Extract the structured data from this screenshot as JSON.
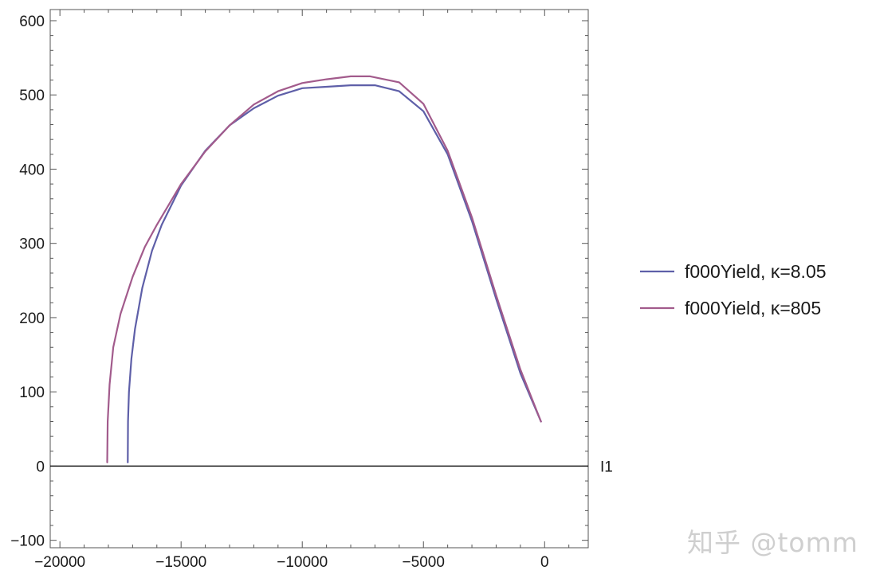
{
  "chart_data": {
    "type": "line",
    "title": "",
    "xlabel": "I1",
    "ylabel": "",
    "xlim": [
      -20400,
      1800
    ],
    "ylim": [
      -110,
      615
    ],
    "xticks": [
      -20000,
      -15000,
      -10000,
      -5000,
      0
    ],
    "xtick_labels": [
      "−20000",
      "−15000",
      "−10000",
      "−5000",
      "0"
    ],
    "yticks": [
      -100,
      0,
      100,
      200,
      300,
      400,
      500,
      600
    ],
    "ytick_labels": [
      "−100",
      "0",
      "100",
      "200",
      "300",
      "400",
      "500",
      "600"
    ],
    "grid": false,
    "legend": "right",
    "series": [
      {
        "name": "f000Yield, κ=8.05",
        "color": "#5e5fa8",
        "x": [
          -17200,
          -17190,
          -17150,
          -17050,
          -16900,
          -16600,
          -16200,
          -15800,
          -15000,
          -14000,
          -13000,
          -12000,
          -11000,
          -10000,
          -9000,
          -8000,
          -7000,
          -6000,
          -5000,
          -4000,
          -3000,
          -2000,
          -1000,
          -150
        ],
        "y": [
          5,
          60,
          100,
          145,
          185,
          240,
          290,
          325,
          378,
          425,
          459,
          482,
          499,
          509,
          511,
          513,
          513,
          505,
          478,
          420,
          330,
          225,
          125,
          60
        ]
      },
      {
        "name": "f000Yield, κ=805",
        "color": "#a25b8c",
        "x": [
          -18050,
          -18030,
          -17950,
          -17800,
          -17500,
          -17000,
          -16500,
          -16000,
          -15000,
          -14000,
          -13000,
          -12000,
          -11000,
          -10000,
          -9000,
          -8000,
          -7200,
          -6000,
          -5000,
          -4000,
          -3000,
          -2000,
          -1000,
          -150
        ],
        "y": [
          5,
          60,
          110,
          160,
          205,
          255,
          295,
          325,
          380,
          424,
          459,
          487,
          505,
          516,
          521,
          525,
          525,
          517,
          488,
          425,
          335,
          230,
          130,
          60
        ]
      }
    ]
  },
  "watermark": "知乎 @tomm"
}
